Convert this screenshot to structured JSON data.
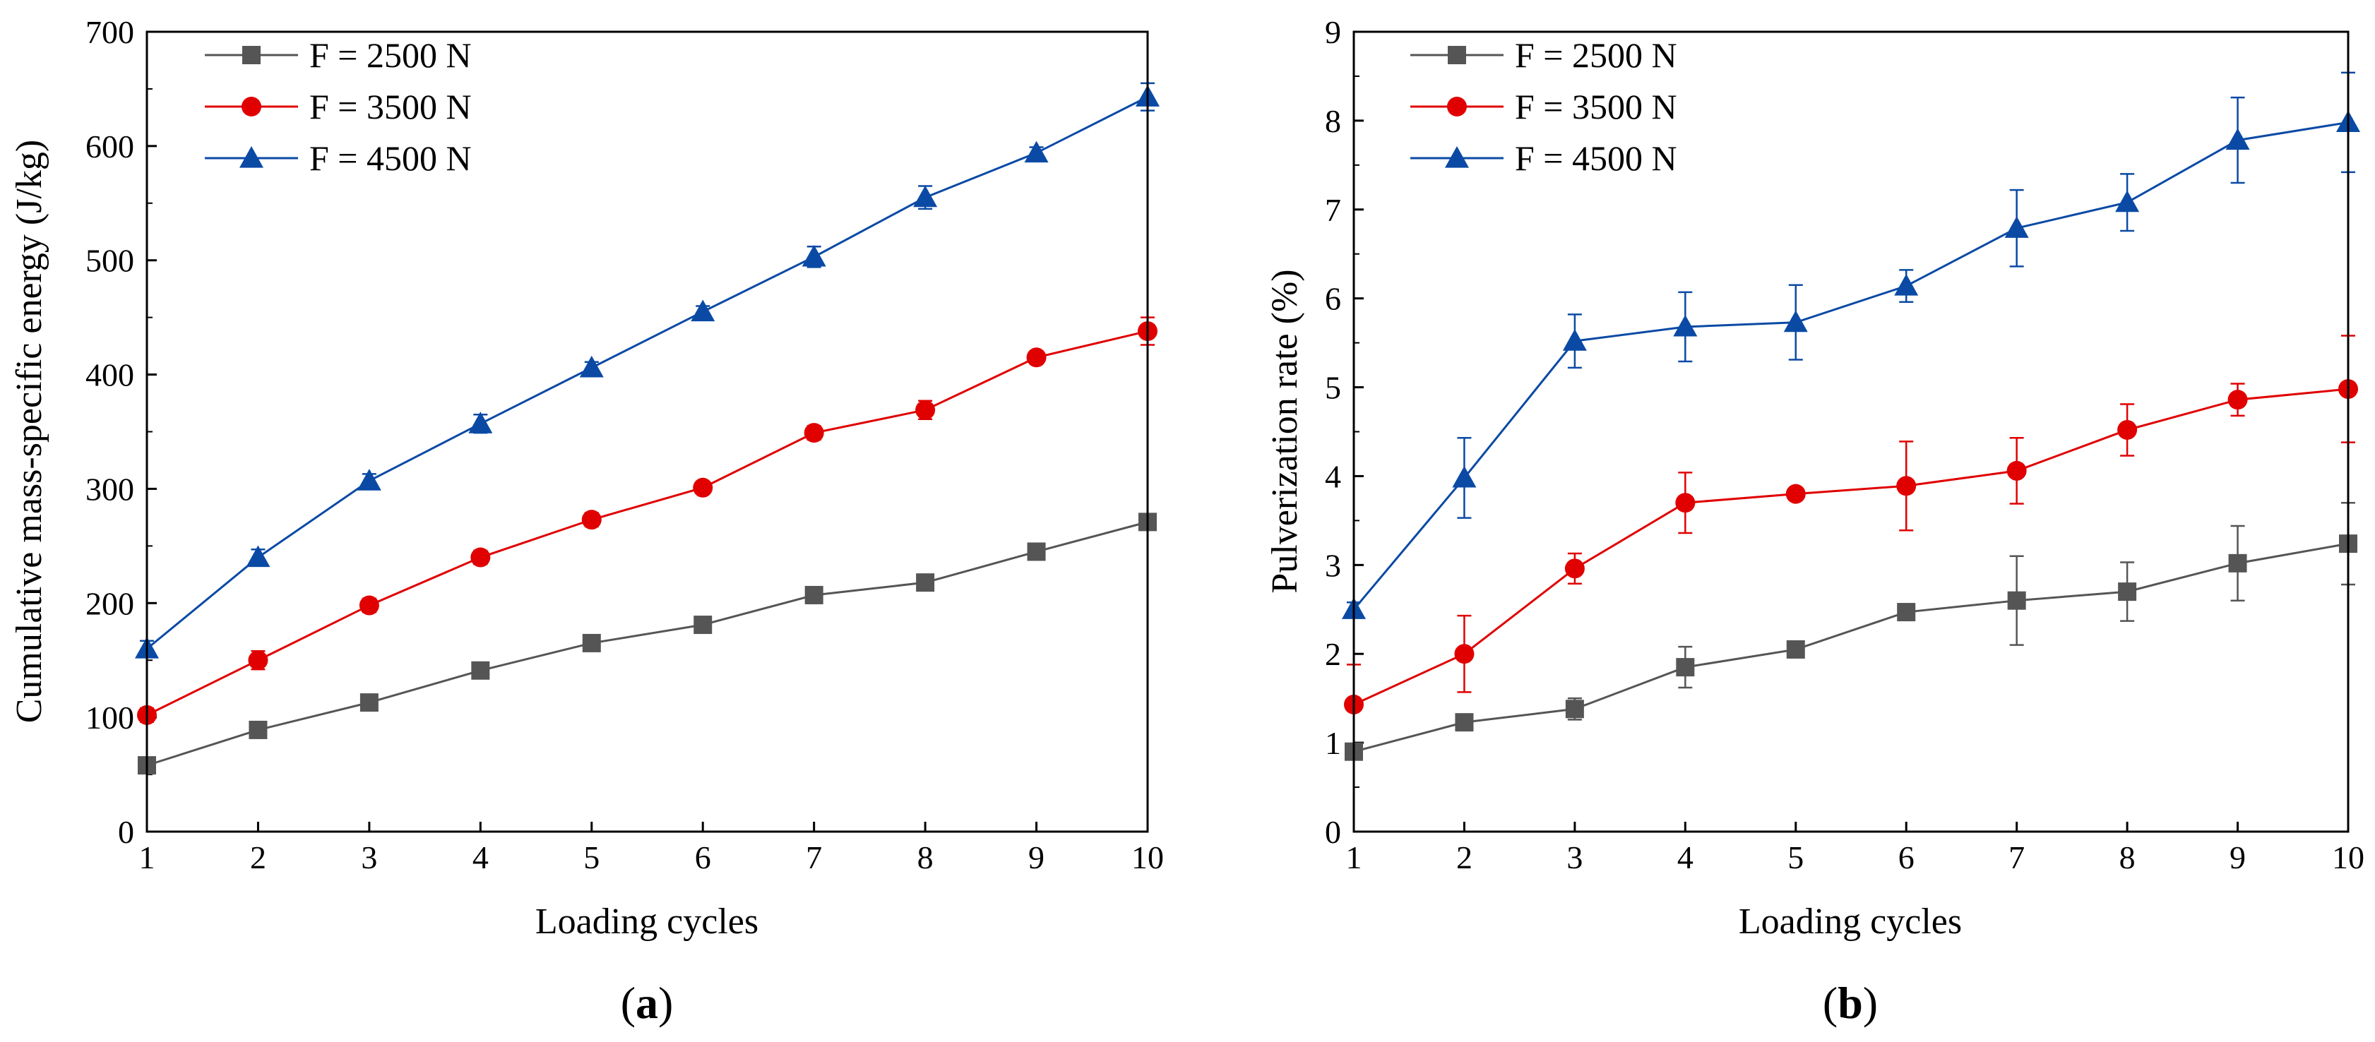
{
  "chart_data": [
    {
      "type": "line",
      "panel_label": {
        "open": "(",
        "letter": "a",
        "close": ")"
      },
      "xlabel": "Loading cycles",
      "ylabel": "Cumulative mass-specific energy (J/kg)",
      "x": [
        1,
        2,
        3,
        4,
        5,
        6,
        7,
        8,
        9,
        10
      ],
      "xlim": [
        1,
        10
      ],
      "ylim": [
        0,
        700
      ],
      "yticks": [
        0,
        100,
        200,
        300,
        400,
        500,
        600,
        700
      ],
      "legend_position": "top-left",
      "series": [
        {
          "name": "F = 2500 N",
          "marker": "square",
          "color": "#555555",
          "values": [
            58,
            89,
            113,
            141,
            165,
            181,
            207,
            218,
            245,
            271
          ],
          "errors": [
            5,
            4,
            4,
            4,
            4,
            4,
            4,
            4,
            4,
            4
          ]
        },
        {
          "name": "F = 3500 N",
          "marker": "circle",
          "color": "#e00000",
          "values": [
            102,
            150,
            198,
            240,
            273,
            301,
            349,
            369,
            415,
            438
          ],
          "errors": [
            6,
            8,
            6,
            6,
            6,
            5,
            6,
            8,
            5,
            12
          ]
        },
        {
          "name": "F = 4500 N",
          "marker": "triangle",
          "color": "#0a4aa5",
          "values": [
            160,
            240,
            307,
            357,
            406,
            455,
            503,
            555,
            594,
            643
          ],
          "errors": [
            7,
            7,
            6,
            8,
            5,
            5,
            9,
            10,
            5,
            12
          ]
        }
      ]
    },
    {
      "type": "line",
      "panel_label": {
        "open": "(",
        "letter": "b",
        "close": ")"
      },
      "xlabel": "Loading cycles",
      "ylabel": "Pulverization rate (%)",
      "x": [
        1,
        2,
        3,
        4,
        5,
        6,
        7,
        8,
        9,
        10
      ],
      "xlim": [
        1,
        10
      ],
      "ylim": [
        0,
        9
      ],
      "yticks": [
        0,
        1,
        2,
        3,
        4,
        5,
        6,
        7,
        8,
        9
      ],
      "legend_position": "top-left",
      "series": [
        {
          "name": "F = 2500 N",
          "marker": "square",
          "color": "#555555",
          "values": [
            0.9,
            1.23,
            1.38,
            1.85,
            2.05,
            2.47,
            2.6,
            2.7,
            3.02,
            3.24
          ],
          "errors": [
            0.05,
            0.06,
            0.12,
            0.23,
            0.05,
            0.09,
            0.5,
            0.33,
            0.42,
            0.46
          ]
        },
        {
          "name": "F = 3500 N",
          "marker": "circle",
          "color": "#e00000",
          "values": [
            1.43,
            2.0,
            2.96,
            3.7,
            3.8,
            3.89,
            4.06,
            4.52,
            4.86,
            4.98
          ],
          "errors": [
            0.45,
            0.43,
            0.17,
            0.34,
            0.06,
            0.5,
            0.37,
            0.29,
            0.18,
            0.6
          ]
        },
        {
          "name": "F = 4500 N",
          "marker": "triangle",
          "color": "#0a4aa5",
          "values": [
            2.5,
            3.98,
            5.52,
            5.68,
            5.73,
            6.14,
            6.79,
            7.08,
            7.78,
            7.98
          ],
          "errors": [
            0.08,
            0.45,
            0.3,
            0.39,
            0.42,
            0.18,
            0.43,
            0.32,
            0.48,
            0.56
          ]
        }
      ]
    }
  ]
}
